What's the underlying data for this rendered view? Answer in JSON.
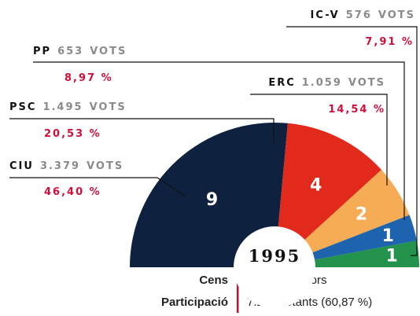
{
  "chart_data": {
    "type": "semicircle",
    "center_label": "1995",
    "unit": "VOTS",
    "parties": [
      "CIU",
      "PSC",
      "ERC",
      "PP",
      "IC-V"
    ],
    "colors": [
      "#0e2240",
      "#e12a1c",
      "#f5ac55",
      "#1e63ad",
      "#23924a"
    ],
    "values": [
      9,
      4,
      2,
      1,
      1
    ],
    "votes": [
      3379,
      1495,
      1059,
      653,
      576
    ],
    "votes_labels": [
      "3.379",
      "1.495",
      "1.059",
      "653",
      "576"
    ],
    "percents": [
      46.4,
      20.53,
      14.54,
      8.97,
      7.91
    ],
    "percent_labels": [
      "46,40 %",
      "20,53 %",
      "14,54 %",
      "8,97 %",
      "7,91 %"
    ]
  },
  "footer": [
    {
      "label": "Cens",
      "text": "11.990 electors"
    },
    {
      "label": "Participació",
      "text": "7.298 votants (60,87 %)"
    }
  ]
}
